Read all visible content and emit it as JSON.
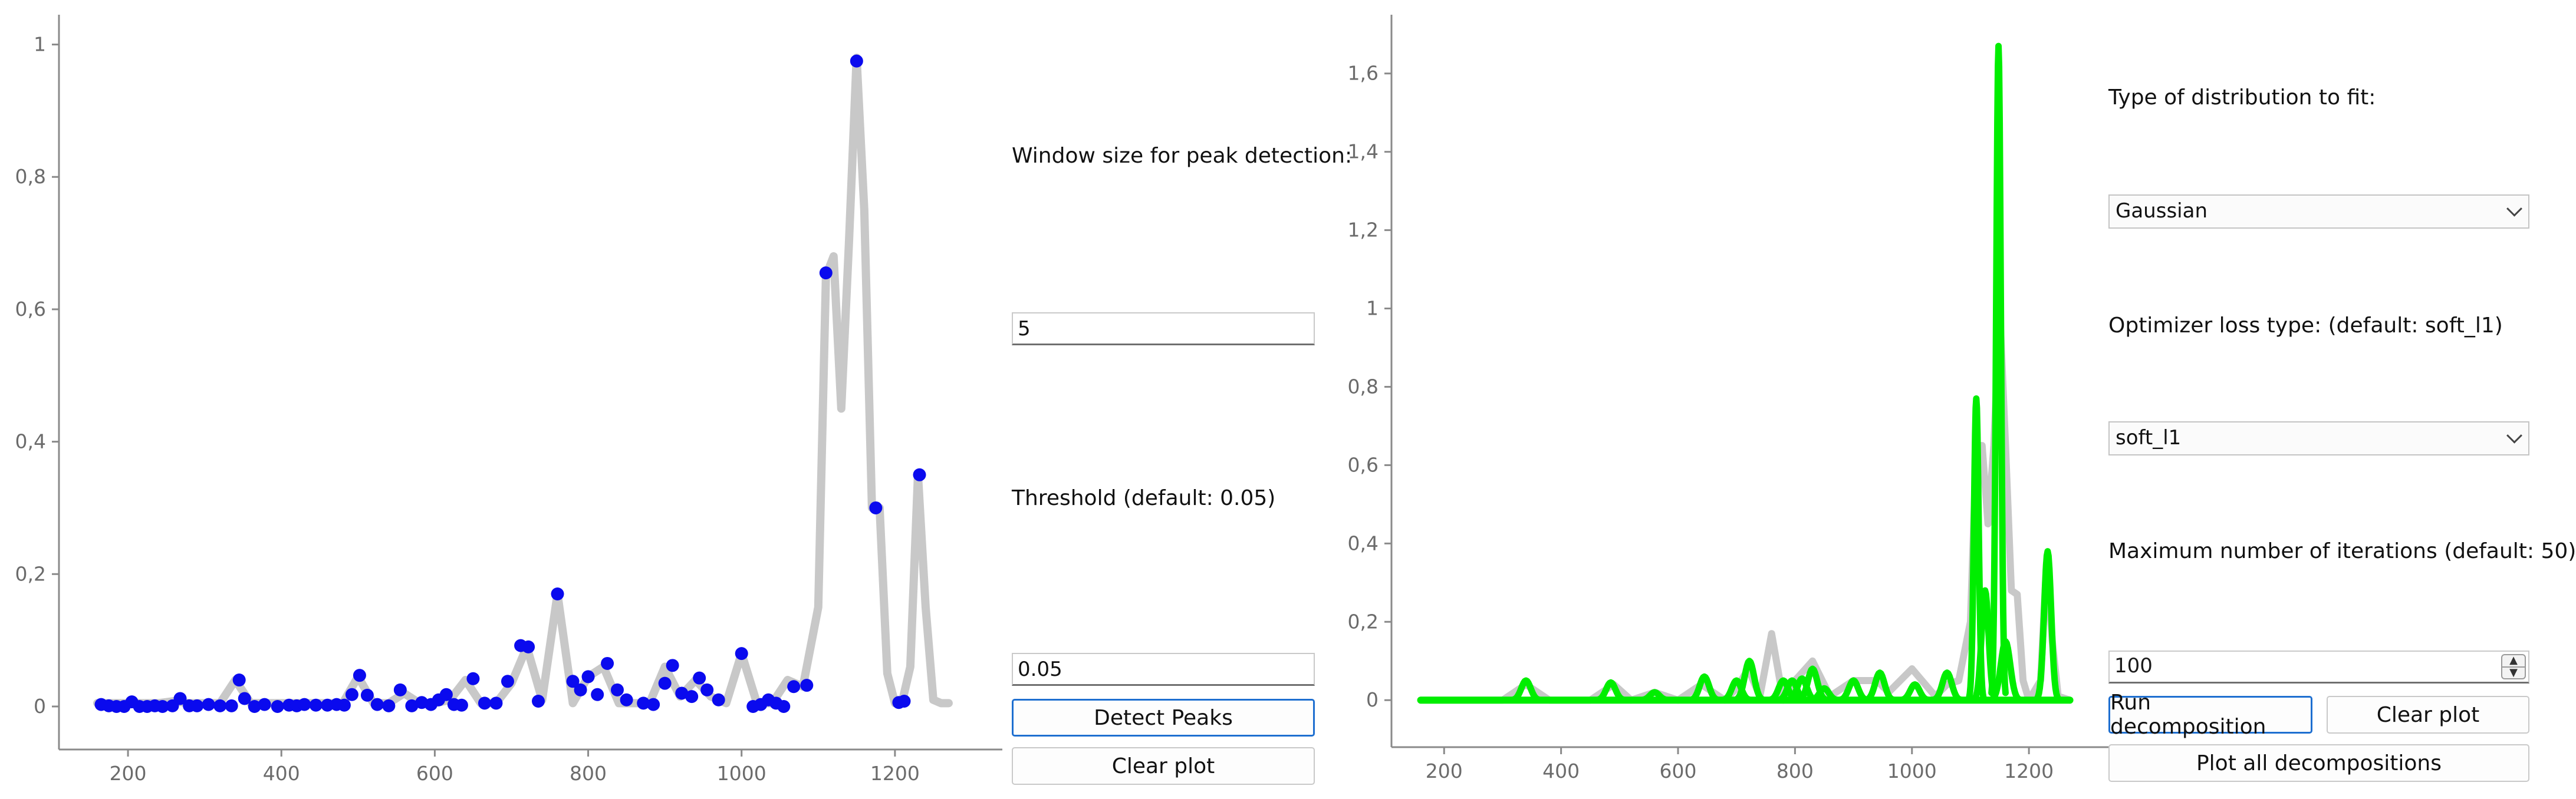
{
  "left_panel": {
    "window_label": "Window size for peak detection:",
    "window_value": "5",
    "threshold_label": "Threshold (default: 0.05)",
    "threshold_value": "0.05",
    "detect_button": "Detect Peaks",
    "clear_button": "Clear plot"
  },
  "right_panel": {
    "distribution_label": "Type of distribution to fit:",
    "distribution_selected": "Gaussian",
    "loss_label": "Optimizer loss type: (default: soft_l1)",
    "loss_selected": "soft_l1",
    "iterations_label": "Maximum number of iterations (default: 50)",
    "iterations_value": "100",
    "run_button": "Run decomposition",
    "clear_button": "Clear plot",
    "plot_all_button": "Plot all decompositions"
  },
  "colors": {
    "spectrum": "#c8c8c8",
    "peaks": "#0a0aee",
    "decomposition": "#00ee00",
    "primary_border": "#1e6fd0"
  },
  "chart_data": [
    {
      "type": "scatter",
      "x_ticks": [
        "200",
        "400",
        "600",
        "800",
        "1000",
        "1200"
      ],
      "y_ticks": [
        "0",
        "0.2",
        "0.4",
        "0.6",
        "0.8",
        "1"
      ],
      "xlim": [
        110,
        1340
      ],
      "ylim": [
        -0.065,
        1.045
      ],
      "series": [
        {
          "kind": "line",
          "x": [
            160,
            180,
            200,
            220,
            240,
            260,
            280,
            300,
            320,
            340,
            360,
            380,
            400,
            420,
            440,
            460,
            480,
            500,
            520,
            540,
            560,
            580,
            600,
            620,
            640,
            660,
            680,
            700,
            720,
            740,
            760,
            780,
            800,
            820,
            840,
            860,
            880,
            900,
            920,
            940,
            960,
            980,
            1000,
            1020,
            1040,
            1060,
            1080,
            1100,
            1110,
            1120,
            1130,
            1140,
            1150,
            1160,
            1170,
            1180,
            1190,
            1200,
            1210,
            1220,
            1230,
            1240,
            1250,
            1260,
            1270
          ],
          "y": [
            0.005,
            0.005,
            0.005,
            0.005,
            0.005,
            0.008,
            0.005,
            0.005,
            0.005,
            0.04,
            0.005,
            0.005,
            0.005,
            0.005,
            0.005,
            0.005,
            0.005,
            0.045,
            0.005,
            0.005,
            0.02,
            0.005,
            0.005,
            0.01,
            0.04,
            0.005,
            0.005,
            0.035,
            0.09,
            0.01,
            0.17,
            0.005,
            0.045,
            0.06,
            0.005,
            0.005,
            0.005,
            0.06,
            0.015,
            0.04,
            0.015,
            0.005,
            0.08,
            0.005,
            0.005,
            0.04,
            0.03,
            0.15,
            0.65,
            0.68,
            0.45,
            0.7,
            0.98,
            0.75,
            0.3,
            0.3,
            0.05,
            0.005,
            0.01,
            0.06,
            0.35,
            0.15,
            0.01,
            0.005,
            0.005
          ]
        },
        {
          "kind": "points",
          "x": [
            165,
            175,
            185,
            195,
            205,
            215,
            225,
            235,
            245,
            258,
            268,
            280,
            290,
            305,
            320,
            335,
            345,
            352,
            365,
            378,
            395,
            410,
            420,
            430,
            445,
            460,
            472,
            482,
            492,
            502,
            512,
            525,
            540,
            555,
            570,
            583,
            595,
            605,
            615,
            625,
            635,
            650,
            665,
            680,
            695,
            712,
            722,
            735,
            760,
            780,
            790,
            800,
            812,
            825,
            838,
            850,
            872,
            885,
            900,
            910,
            922,
            935,
            945,
            955,
            970,
            1000,
            1015,
            1025,
            1035,
            1045,
            1055,
            1068,
            1085,
            1110,
            1150,
            1175,
            1205,
            1212,
            1232
          ],
          "y": [
            0.003,
            0.001,
            0.0,
            0.0,
            0.007,
            0.0,
            0.0,
            0.001,
            0.0,
            0.001,
            0.012,
            0.001,
            0.001,
            0.003,
            0.001,
            0.001,
            0.04,
            0.012,
            0.0,
            0.003,
            0.0,
            0.002,
            0.001,
            0.003,
            0.002,
            0.002,
            0.003,
            0.002,
            0.018,
            0.047,
            0.017,
            0.003,
            0.001,
            0.025,
            0.001,
            0.006,
            0.003,
            0.01,
            0.018,
            0.003,
            0.002,
            0.042,
            0.005,
            0.005,
            0.038,
            0.092,
            0.09,
            0.008,
            0.17,
            0.038,
            0.025,
            0.045,
            0.018,
            0.065,
            0.025,
            0.01,
            0.005,
            0.003,
            0.035,
            0.062,
            0.02,
            0.015,
            0.043,
            0.025,
            0.01,
            0.08,
            0.0,
            0.003,
            0.01,
            0.005,
            0.0,
            0.03,
            0.032,
            0.655,
            0.975,
            0.3,
            0.006,
            0.008,
            0.35
          ]
        }
      ]
    },
    {
      "type": "line",
      "x_ticks": [
        "200",
        "400",
        "600",
        "800",
        "1000",
        "1200"
      ],
      "y_ticks": [
        "0",
        "0.2",
        "0.4",
        "0.6",
        "0.8",
        "1",
        "1.2",
        "1.4",
        "1.6"
      ],
      "xlim": [
        110,
        1340
      ],
      "ylim": [
        -0.12,
        1.75
      ],
      "series": [
        {
          "kind": "spectrum",
          "x": [
            160,
            200,
            240,
            300,
            340,
            380,
            450,
            490,
            520,
            560,
            600,
            640,
            680,
            700,
            720,
            740,
            760,
            780,
            800,
            830,
            860,
            900,
            940,
            960,
            1000,
            1040,
            1060,
            1080,
            1100,
            1110,
            1120,
            1130,
            1140,
            1150,
            1160,
            1170,
            1180,
            1190,
            1200,
            1220,
            1230,
            1240,
            1250,
            1270
          ],
          "y": [
            0.0,
            0.0,
            0.0,
            0.0,
            0.04,
            0.0,
            0.0,
            0.04,
            0.0,
            0.02,
            0.0,
            0.04,
            0.0,
            0.03,
            0.08,
            0.01,
            0.17,
            0.0,
            0.05,
            0.1,
            0.01,
            0.05,
            0.05,
            0.02,
            0.08,
            0.01,
            0.04,
            0.05,
            0.2,
            0.65,
            0.65,
            0.45,
            0.65,
            1.0,
            0.65,
            0.28,
            0.27,
            0.05,
            0.0,
            0.05,
            0.35,
            0.15,
            0.01,
            0.0
          ]
        },
        {
          "kind": "peaks",
          "centers": [
            340,
            485,
            560,
            645,
            700,
            722,
            780,
            795,
            812,
            830,
            850,
            900,
            945,
            1005,
            1060,
            1110,
            1125,
            1148,
            1160,
            1232
          ],
          "heights": [
            0.05,
            0.045,
            0.02,
            0.06,
            0.05,
            0.1,
            0.05,
            0.05,
            0.055,
            0.08,
            0.03,
            0.05,
            0.07,
            0.04,
            0.07,
            0.77,
            0.28,
            1.67,
            0.15,
            0.38
          ]
        }
      ]
    }
  ]
}
